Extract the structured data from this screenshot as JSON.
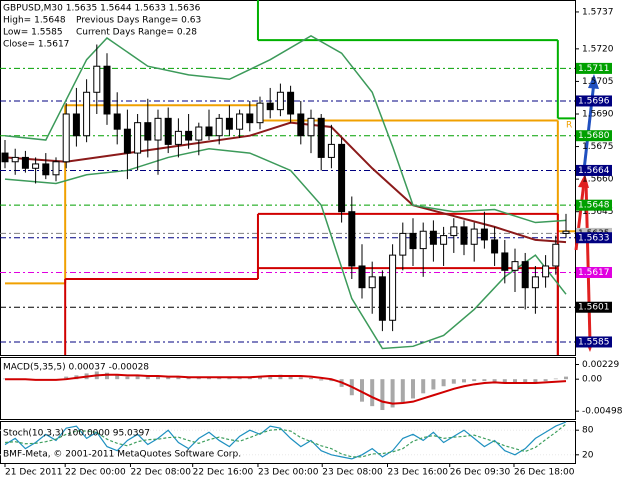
{
  "chart_data": [
    {
      "type": "candlestick",
      "title": "GBPUSD,M30 1.5635 1.5644 1.5633 1.5636",
      "info": [
        "High= 1.5648",
        "Previous Days Range= 0.63",
        "Low= 1.5585",
        "Current Days Range= 0.28",
        "Close= 1.5617"
      ],
      "open": [
        1.5672,
        1.5668,
        1.567,
        1.5665,
        1.5667,
        1.5662,
        1.5668,
        1.569,
        1.568,
        1.57,
        1.5712,
        1.569,
        1.5683,
        1.5672,
        1.5686,
        1.5678,
        1.5688,
        1.5676,
        1.5682,
        1.5678,
        1.5684,
        1.568,
        1.5688,
        1.5683,
        1.569,
        1.5686,
        1.5695,
        1.5692,
        1.57,
        1.569,
        1.568,
        1.5688,
        1.567,
        1.5676,
        1.5645,
        1.562,
        1.561,
        1.5615,
        1.5595,
        1.5625,
        1.5635,
        1.5628,
        1.5636,
        1.563,
        1.5634,
        1.5638,
        1.563,
        1.5637,
        1.5632,
        1.5626,
        1.5618,
        1.5622,
        1.561,
        1.5615,
        1.562,
        1.5635
      ],
      "high": [
        1.5678,
        1.5674,
        1.5673,
        1.567,
        1.5672,
        1.567,
        1.5695,
        1.5702,
        1.5706,
        1.5722,
        1.5718,
        1.57,
        1.5692,
        1.569,
        1.5697,
        1.5692,
        1.5693,
        1.5688,
        1.569,
        1.5686,
        1.5692,
        1.569,
        1.5694,
        1.5692,
        1.5696,
        1.5698,
        1.5702,
        1.5704,
        1.5703,
        1.5696,
        1.5692,
        1.569,
        1.5685,
        1.5679,
        1.5652,
        1.563,
        1.5622,
        1.5618,
        1.563,
        1.564,
        1.5642,
        1.564,
        1.5641,
        1.5638,
        1.5642,
        1.5641,
        1.564,
        1.5645,
        1.5638,
        1.5632,
        1.5628,
        1.5626,
        1.562,
        1.5625,
        1.5634,
        1.5644
      ],
      "low": [
        1.5665,
        1.5662,
        1.5663,
        1.5658,
        1.566,
        1.5659,
        1.5665,
        1.5675,
        1.5677,
        1.569,
        1.5685,
        1.5676,
        1.566,
        1.5664,
        1.567,
        1.5662,
        1.5672,
        1.567,
        1.5674,
        1.5671,
        1.5678,
        1.5676,
        1.568,
        1.5679,
        1.5682,
        1.5683,
        1.5688,
        1.5689,
        1.5686,
        1.5676,
        1.5672,
        1.5664,
        1.5665,
        1.564,
        1.5614,
        1.5605,
        1.5598,
        1.559,
        1.559,
        1.5618,
        1.562,
        1.5615,
        1.5622,
        1.562,
        1.5626,
        1.5625,
        1.5622,
        1.5628,
        1.562,
        1.5612,
        1.5608,
        1.56,
        1.5598,
        1.561,
        1.5616,
        1.5633
      ],
      "close": [
        1.5668,
        1.567,
        1.5665,
        1.5667,
        1.5662,
        1.5668,
        1.569,
        1.568,
        1.57,
        1.5712,
        1.569,
        1.5683,
        1.5672,
        1.5686,
        1.5678,
        1.5688,
        1.5676,
        1.5682,
        1.5678,
        1.5684,
        1.568,
        1.5688,
        1.5683,
        1.569,
        1.5686,
        1.5695,
        1.5692,
        1.57,
        1.569,
        1.568,
        1.5688,
        1.567,
        1.5676,
        1.5645,
        1.562,
        1.561,
        1.5615,
        1.5595,
        1.5625,
        1.5635,
        1.5628,
        1.5636,
        1.563,
        1.5634,
        1.5638,
        1.563,
        1.5637,
        1.5632,
        1.5626,
        1.5618,
        1.5622,
        1.561,
        1.5615,
        1.562,
        1.563,
        1.5636
      ],
      "ylim": [
        1.5579,
        1.57425
      ],
      "yticks": [
        1.5737,
        {
          "value": 1.572,
          "label": "1.5720"
        },
        1.5705,
        {
          "value": 1.569,
          "label": "1.5690"
        },
        1.5675,
        {
          "value": 1.566,
          "label": "1.5660"
        },
        1.5645
      ],
      "lines": [
        {
          "color": "#8b1a1a",
          "x": [
            0,
            6,
            12,
            18,
            24,
            28,
            32,
            36,
            40,
            44,
            48,
            52,
            55
          ],
          "values": [
            1.567,
            1.5668,
            1.5672,
            1.5676,
            1.568,
            1.5686,
            1.5684,
            1.5665,
            1.5648,
            1.5643,
            1.5638,
            1.5632,
            1.5631
          ]
        },
        {
          "color": "#3c9a5a",
          "x": [
            0,
            4,
            8,
            10,
            14,
            18,
            22,
            26,
            30,
            33,
            36,
            38,
            40,
            44,
            48,
            52,
            55
          ],
          "values": [
            1.568,
            1.5678,
            1.5715,
            1.5725,
            1.5712,
            1.5708,
            1.5706,
            1.5715,
            1.5726,
            1.5718,
            1.57,
            1.5675,
            1.5648,
            1.5645,
            1.5646,
            1.564,
            1.5641
          ]
        },
        {
          "color": "#3c9a5a",
          "x": [
            0,
            5,
            8,
            12,
            16,
            20,
            24,
            28,
            31,
            34,
            37,
            40,
            43,
            46,
            49,
            52,
            55
          ],
          "values": [
            1.566,
            1.5658,
            1.5662,
            1.5664,
            1.567,
            1.5674,
            1.5672,
            1.5664,
            1.5648,
            1.5605,
            1.5582,
            1.5583,
            1.5588,
            1.56,
            1.5615,
            1.5625,
            1.5607
          ]
        }
      ],
      "steps": [
        {
          "color": "#00b000",
          "x": [
            19,
            24.8,
            54.2
          ],
          "values": [
            1.575,
            1.5724,
            1.5688
          ]
        },
        {
          "color": "#f0a000",
          "x": [
            0,
            5.9,
            24.8,
            54.2
          ],
          "values": [
            1.5612,
            1.5694,
            1.5687,
            1.5636
          ]
        },
        {
          "color": "#d00000",
          "x": [
            0,
            5.9,
            24.8,
            54.2
          ],
          "values": [
            1.5575,
            1.5614,
            1.5644,
            1.5575
          ]
        },
        {
          "color": "#d00000",
          "x": [
            24.8,
            54.2
          ],
          "values": [
            1.5619,
            1.5575
          ]
        }
      ],
      "levels": [
        {
          "value": 1.5711,
          "color": "#00a000"
        },
        {
          "value": 1.5696,
          "color": "#000080"
        },
        {
          "value": {
            "value": 1.568,
            "label": "1.5680"
          },
          "color": "#00a000"
        },
        {
          "value": 1.5664,
          "color": "#000080"
        },
        {
          "value": 1.5648,
          "color": "#00a000"
        },
        {
          "value": 1.5635,
          "color": "#c0c0c0"
        },
        {
          "value": 1.5633,
          "color": "#000080"
        },
        {
          "value": 1.5617,
          "color": "#e000e0"
        },
        {
          "value": 1.5601,
          "color": "#000000"
        },
        {
          "value": 1.5585,
          "color": "#000080"
        }
      ],
      "marker": "R",
      "x_labels": [
        {
          "index": 0,
          "label": "21 Dec 2011"
        },
        {
          "index": 5.9,
          "label": "22 Dec 00:00"
        },
        {
          "index": 12.3,
          "label": "22 Dec 08:00"
        },
        {
          "index": 18.4,
          "label": "22 Dec 16:00"
        },
        {
          "index": 24.8,
          "label": "23 Dec 00:00"
        },
        {
          "index": 31.1,
          "label": "23 Dec 08:00"
        },
        {
          "index": 37.5,
          "label": "23 Dec 16:00"
        },
        {
          "index": 43.6,
          "label": "26 Dec 09:30"
        },
        {
          "index": 49.9,
          "label": "26 Dec 18:00"
        }
      ]
    },
    {
      "type": "macd",
      "title": "MACD(5,35,5) 0.00037 -0.00028",
      "values": [
        0.0001,
        0.0,
        -0.0001,
        -0.0002,
        -0.0002,
        -0.0001,
        0.0004,
        0.0006,
        0.0009,
        0.0012,
        0.001,
        0.0007,
        0.0004,
        0.0005,
        0.0004,
        0.0005,
        0.0003,
        0.0003,
        0.0002,
        0.0003,
        0.0002,
        0.0003,
        0.0003,
        0.0004,
        0.0004,
        0.0005,
        0.0006,
        0.0007,
        0.0006,
        0.0003,
        0.0002,
        -0.0002,
        -0.0003,
        -0.0012,
        -0.0025,
        -0.0035,
        -0.0042,
        -0.0048,
        -0.0044,
        -0.0036,
        -0.003,
        -0.0022,
        -0.0016,
        -0.0011,
        -0.0007,
        -0.0005,
        -0.0003,
        -0.0003,
        -0.0004,
        -0.0006,
        -0.0005,
        -0.0007,
        -0.0006,
        -0.0003,
        0.0001,
        0.0004
      ],
      "color": "#a8a8a8",
      "series": [
        {
          "color": "#d00000",
          "values": [
            0.0,
            0.0,
            0.0,
            -0.0001,
            -0.0001,
            -0.0001,
            0.0,
            0.0002,
            0.0004,
            0.0006,
            0.0007,
            0.0007,
            0.0006,
            0.0006,
            0.0005,
            0.0005,
            0.0004,
            0.0004,
            0.0003,
            0.0003,
            0.0003,
            0.0003,
            0.0003,
            0.0003,
            0.0003,
            0.0004,
            0.0005,
            0.0005,
            0.0005,
            0.0005,
            0.0004,
            0.0002,
            0.0,
            -0.0005,
            -0.0012,
            -0.002,
            -0.0028,
            -0.0035,
            -0.0038,
            -0.0037,
            -0.0035,
            -0.003,
            -0.0025,
            -0.002,
            -0.0015,
            -0.0011,
            -0.0008,
            -0.0006,
            -0.0005,
            -0.0006,
            -0.0006,
            -0.0006,
            -0.0006,
            -0.0005,
            -0.0004,
            -0.0003
          ]
        }
      ],
      "ylim": [
        -0.0062,
        0.0033
      ],
      "yticks": [
        0.00229,
        {
          "value": 0,
          "label": "0.00"
        },
        -0.00498
      ]
    },
    {
      "type": "stoch",
      "title": "Stoch(10,3,3) 100.0000 95.0397",
      "series": [
        {
          "color": "#1e90c0",
          "values": [
            45,
            60,
            35,
            50,
            70,
            55,
            85,
            90,
            60,
            75,
            40,
            30,
            55,
            70,
            45,
            60,
            80,
            50,
            35,
            60,
            75,
            55,
            40,
            65,
            80,
            70,
            90,
            85,
            60,
            40,
            55,
            30,
            20,
            15,
            10,
            20,
            35,
            15,
            30,
            60,
            70,
            55,
            75,
            50,
            65,
            80,
            60,
            40,
            55,
            30,
            20,
            35,
            60,
            75,
            90,
            100
          ]
        },
        {
          "color": "#40a060",
          "dashed": true,
          "values": [
            50,
            52,
            47,
            48,
            52,
            58,
            70,
            78,
            78,
            75,
            58,
            48,
            42,
            52,
            57,
            58,
            62,
            63,
            55,
            48,
            57,
            63,
            57,
            53,
            62,
            72,
            80,
            82,
            78,
            62,
            52,
            42,
            35,
            22,
            15,
            15,
            22,
            23,
            27,
            35,
            53,
            62,
            67,
            60,
            63,
            65,
            68,
            60,
            52,
            42,
            35,
            28,
            38,
            57,
            75,
            95.0397
          ]
        }
      ],
      "ylim": [
        0,
        100
      ],
      "yticks": [
        80,
        20
      ]
    }
  ],
  "footer": "BMF-Meta, © 2001-2011 MetaQuotes Software Corp."
}
